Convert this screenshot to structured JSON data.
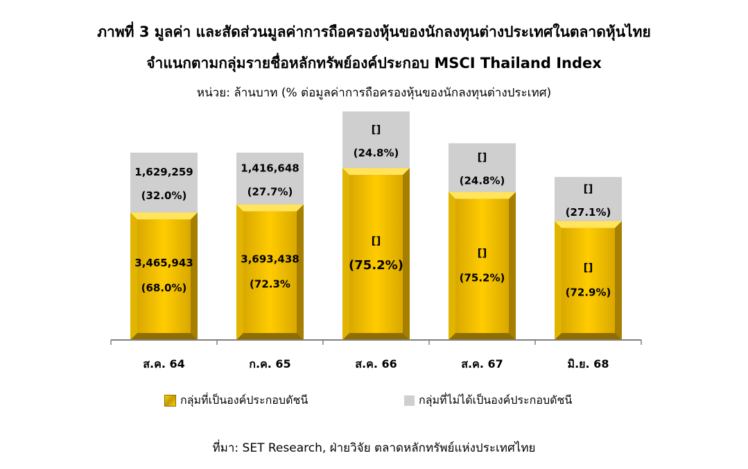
{
  "title_line1": "ภาพที่ 3 มูลค่า และสัดส่วนมูลค่าการถือครองหุ้นของนักลงทุนต่างประเทศในตลาดหุ้นไทย",
  "title_line2": "จำแนกตามกลุ่มรายชื่อหลักทรัพย์องค์ประกอบ MSCI Thailand Index",
  "unit_line": "หน่วย: ล้านบาท (% ต่อมูลค่าการถือครองหุ้นของนักลงทุนต่างประเทศ)",
  "source": "ที่มา: SET Research, ฝ่ายวิจัย ตลาดหลักทรัพย์แห่งประเทศไทย",
  "colors": {
    "index_gold": "#f2c500",
    "non_index_gray": "#cfcfcf",
    "axis": "#7f7f7f"
  },
  "chart_data": {
    "type": "bar",
    "stacked": true,
    "percent_stacked": true,
    "categories": [
      "ส.ค. 64",
      "ก.ค. 65",
      "ส.ค. 66",
      "ส.ค. 67",
      "มิ.ย. 68"
    ],
    "series": [
      {
        "name": "กลุ่มที่เป็นองค์ประกอบดัชนี",
        "values": [
          3465943,
          3693438,
          null,
          null,
          null
        ],
        "value_labels": [
          "3,465,943",
          "3,693,438",
          "[]",
          "[]",
          "[]"
        ],
        "percent_labels": [
          "(68.0%)",
          "(72.3%",
          "(75.2%)",
          "(75.2%)",
          "(72.9%)"
        ],
        "percents": [
          68.0,
          72.3,
          75.2,
          75.2,
          72.9
        ]
      },
      {
        "name": "กลุ่มที่ไม่ได้เป็นองค์ประกอบดัชนี",
        "values": [
          1629259,
          1416648,
          null,
          null,
          null
        ],
        "value_labels": [
          "1,629,259",
          "1,416,648",
          "[]",
          "[]",
          "[]"
        ],
        "percent_labels": [
          "(32.0%)",
          "(27.7%)",
          "(24.8%)",
          "(24.8%)",
          "(27.1%)"
        ],
        "percents": [
          32.0,
          27.7,
          24.8,
          24.8,
          27.1
        ]
      }
    ],
    "relative_totals": [
      1.0,
      1.0,
      1.22,
      1.05,
      0.87
    ],
    "legend_position": "bottom",
    "grid": false
  }
}
